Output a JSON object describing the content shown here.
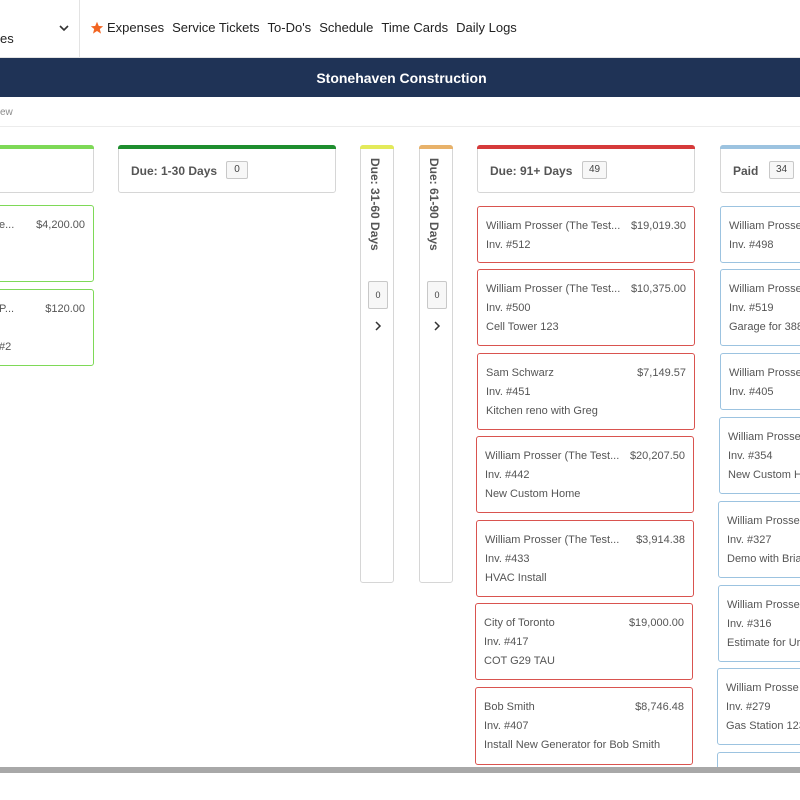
{
  "nav": {
    "module_value": "es",
    "links": [
      "Expenses",
      "Service Tickets",
      "To-Do's",
      "Schedule",
      "Time Cards",
      "Daily Logs"
    ]
  },
  "title": "Stonehaven Construction",
  "breadcrumb": "ew",
  "columns": {
    "current": {
      "cards": [
        {
          "name": "e...",
          "amount": "$4,200.00",
          "inv": "",
          "desc": ""
        },
        {
          "name": "P...",
          "amount": "$120.00",
          "inv": "",
          "desc": "#2"
        }
      ]
    },
    "due_1_30": {
      "title": "Due: 1-30 Days",
      "count": "0"
    },
    "due_31_60": {
      "title": "Due: 31-60 Days",
      "count": "0"
    },
    "due_61_90": {
      "title": "Due: 61-90 Days",
      "count": "0"
    },
    "due_91": {
      "title": "Due: 91+ Days",
      "count": "49",
      "cards": [
        {
          "name": "William Prosser (The Test...",
          "amount": "$19,019.30",
          "inv": "Inv. #512",
          "desc": ""
        },
        {
          "name": "William Prosser (The Test...",
          "amount": "$10,375.00",
          "inv": "Inv. #500",
          "desc": "Cell Tower 123"
        },
        {
          "name": "Sam Schwarz",
          "amount": "$7,149.57",
          "inv": "Inv. #451",
          "desc": "Kitchen reno with Greg"
        },
        {
          "name": "William Prosser (The Test...",
          "amount": "$20,207.50",
          "inv": "Inv. #442",
          "desc": "New Custom Home"
        },
        {
          "name": "William Prosser (The Test...",
          "amount": "$3,914.38",
          "inv": "Inv. #433",
          "desc": "HVAC Install"
        },
        {
          "name": "City of Toronto",
          "amount": "$19,000.00",
          "inv": "Inv. #417",
          "desc": "COT G29 TAU"
        },
        {
          "name": "Bob Smith",
          "amount": "$8,746.48",
          "inv": "Inv. #407",
          "desc": "Install New Generator for Bob Smith"
        }
      ]
    },
    "paid": {
      "title": "Paid",
      "count": "34",
      "cards": [
        {
          "name": "William Prosse",
          "inv": "Inv. #498",
          "desc": ""
        },
        {
          "name": "William Prosse",
          "inv": "Inv. #519",
          "desc": "Garage for 388"
        },
        {
          "name": "William Prosse",
          "inv": "Inv. #405",
          "desc": ""
        },
        {
          "name": "William Prosse",
          "inv": "Inv. #354",
          "desc": "New Custom H"
        },
        {
          "name": "William Prosse",
          "inv": "Inv. #327",
          "desc": "Demo with Bria"
        },
        {
          "name": "William Prosse",
          "inv": "Inv. #316",
          "desc": "Estimate for Ur"
        },
        {
          "name": "William Prosse",
          "inv": "Inv. #279",
          "desc": "Gas Station 123"
        }
      ]
    }
  },
  "colors": {
    "header_bg": "#1f3356",
    "current_accent": "#7ed957",
    "due_1_30_accent": "#1e8e2e",
    "due_31_60_accent": "#e3ea5a",
    "due_61_90_accent": "#e8b26a",
    "due_91_accent": "#d63a3a",
    "paid_accent": "#9cc3e0",
    "star": "#f26522"
  },
  "icons": {
    "module_chevron": "chevron-down-icon",
    "favorite": "star-icon",
    "expand": "chevron-right-icon"
  }
}
